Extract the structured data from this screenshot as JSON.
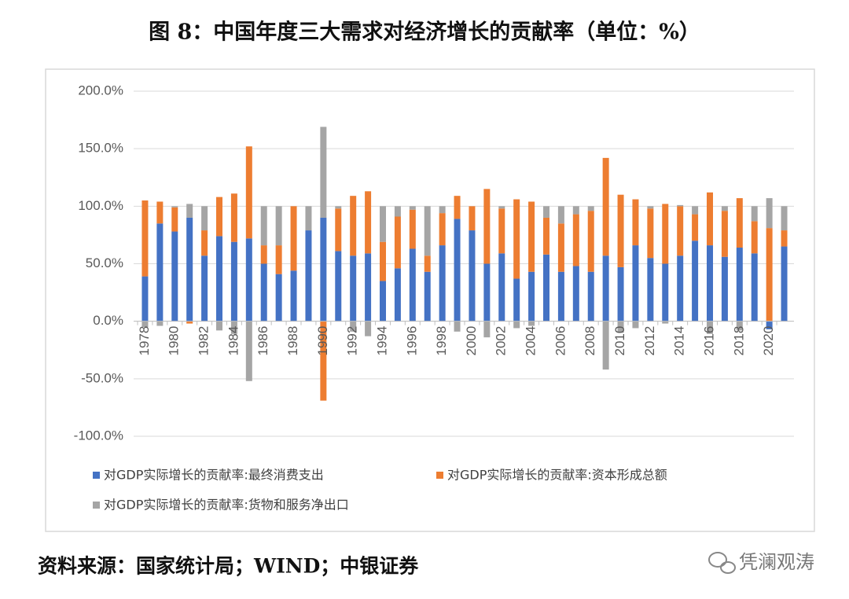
{
  "chart_data": {
    "type": "bar",
    "stacked": true,
    "title": "图 8：中国年度三大需求对经济增长的贡献率（单位：%）",
    "categories": [
      "1978",
      null,
      "1980",
      null,
      "1982",
      null,
      "1984",
      null,
      "1986",
      null,
      "1988",
      null,
      "1990",
      null,
      "1992",
      null,
      "1994",
      null,
      "1996",
      null,
      "1998",
      null,
      "2000",
      null,
      "2002",
      null,
      "2004",
      null,
      "2006",
      null,
      "2008",
      null,
      "2010",
      null,
      "2012",
      null,
      "2014",
      null,
      "2016",
      null,
      "2018",
      null,
      "2020",
      null
    ],
    "series": [
      {
        "name": "对GDP实际增长的贡献率:最终消费支出",
        "color": "#4472c4",
        "values": [
          39,
          85,
          78,
          90,
          57,
          74,
          69,
          72,
          50,
          41,
          44,
          79,
          90,
          61,
          57,
          59,
          35,
          46,
          63,
          43,
          66,
          89,
          79,
          50,
          59,
          37,
          43,
          58,
          43,
          48,
          43,
          57,
          47,
          66,
          55,
          50,
          57,
          70,
          66,
          56,
          64,
          59,
          -7,
          65
        ]
      },
      {
        "name": "对GDP实际增长的贡献率:资本形成总额",
        "color": "#ed7d31",
        "values": [
          66,
          19,
          21,
          -2,
          22,
          34,
          42,
          80,
          16,
          25,
          56,
          0,
          -69,
          37,
          52,
          54,
          34,
          45,
          34,
          14,
          28,
          20,
          21,
          65,
          39,
          69,
          61,
          32,
          42,
          45,
          53,
          85,
          63,
          40,
          43,
          52,
          43,
          23,
          46,
          40,
          43,
          28,
          81,
          14
        ]
      },
      {
        "name": "对GDP实际增长的贡献率:货物和服务净出口",
        "color": "#a5a5a5",
        "values": [
          -5,
          -4,
          1,
          12,
          21,
          -8,
          -11,
          -52,
          34,
          34,
          0,
          21,
          79,
          2,
          -9,
          -13,
          31,
          9,
          3,
          43,
          6,
          -9,
          0,
          -14,
          2,
          -6,
          -4,
          10,
          15,
          7,
          4,
          -42,
          -10,
          -6,
          2,
          -2,
          1,
          7,
          -11,
          4,
          -8,
          13,
          26,
          21
        ]
      }
    ],
    "ylim": [
      -100,
      200
    ],
    "yticks": [
      {
        "value": -100,
        "label": "-100.0%"
      },
      {
        "value": -50,
        "label": "-50.0%"
      },
      {
        "value": 0,
        "label": "0.0%"
      },
      {
        "value": 50,
        "label": "50.0%"
      },
      {
        "value": 100,
        "label": "100.0%"
      },
      {
        "value": 150,
        "label": "150.0%"
      },
      {
        "value": 200,
        "label": "200.0%"
      }
    ],
    "grid": true
  },
  "source": "资料来源：国家统计局；WIND；中银证券",
  "watermark": "凭澜观涛"
}
